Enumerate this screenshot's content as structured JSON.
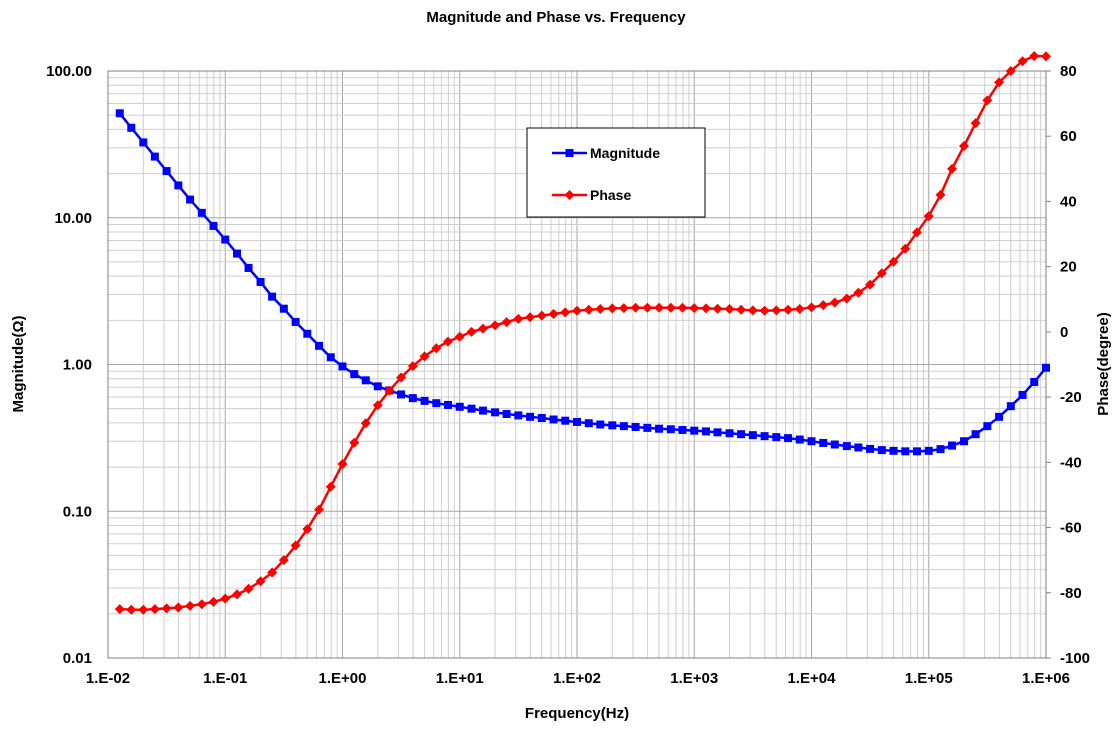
{
  "chart_data": {
    "type": "line",
    "title": "Magnitude and Phase vs. Frequency",
    "xlabel": "Frequency(Hz)",
    "ylabel_left": "Magnitude(Ω)",
    "ylabel_right": "Phase(degree)",
    "x_scale": "log",
    "y_left_scale": "log",
    "y_right_scale": "linear",
    "xlim": [
      0.01,
      1000000
    ],
    "ylim_left": [
      0.01,
      100
    ],
    "ylim_right": [
      -100,
      80
    ],
    "x_ticks": [
      "1.E-02",
      "1.E-01",
      "1.E+00",
      "1.E+01",
      "1.E+02",
      "1.E+03",
      "1.E+04",
      "1.E+05",
      "1.E+06"
    ],
    "y_left_ticks": [
      "0.01",
      "0.10",
      "1.00",
      "10.00",
      "100.00"
    ],
    "y_right_ticks": [
      "-100",
      "-80",
      "-60",
      "-40",
      "-20",
      "0",
      "20",
      "40",
      "60",
      "80"
    ],
    "grid": true,
    "legend_position": "top-right",
    "series": [
      {
        "name": "Magnitude",
        "axis": "left",
        "color": "#0000FF",
        "marker": "square",
        "x": [
          0.0126,
          0.0158,
          0.02,
          0.0251,
          0.0316,
          0.0398,
          0.0501,
          0.0631,
          0.0794,
          0.1,
          0.126,
          0.158,
          0.2,
          0.251,
          0.316,
          0.398,
          0.501,
          0.631,
          0.794,
          1,
          1.26,
          1.58,
          2,
          2.51,
          3.16,
          3.98,
          5.01,
          6.31,
          7.94,
          10,
          12.6,
          15.8,
          20,
          25.1,
          31.6,
          39.8,
          50.1,
          63.1,
          79.4,
          100,
          126,
          158,
          200,
          251,
          316,
          398,
          501,
          631,
          794,
          1000,
          1260,
          1580,
          2000,
          2510,
          3160,
          3980,
          5010,
          6310,
          7940,
          10000,
          12600,
          15800,
          20000,
          25100,
          31600,
          39800,
          50100,
          63100,
          79400,
          100000,
          126000,
          158000,
          200000,
          251000,
          316000,
          398000,
          501000,
          631000,
          794000,
          1000000
        ],
        "y": [
          51.5,
          41,
          32.6,
          26.1,
          20.8,
          16.6,
          13.3,
          10.8,
          8.8,
          7.1,
          5.7,
          4.55,
          3.65,
          2.9,
          2.4,
          1.95,
          1.62,
          1.34,
          1.12,
          0.97,
          0.86,
          0.78,
          0.71,
          0.665,
          0.625,
          0.59,
          0.565,
          0.545,
          0.53,
          0.515,
          0.5,
          0.485,
          0.472,
          0.46,
          0.45,
          0.44,
          0.432,
          0.422,
          0.414,
          0.406,
          0.398,
          0.39,
          0.385,
          0.38,
          0.375,
          0.37,
          0.365,
          0.362,
          0.358,
          0.354,
          0.35,
          0.345,
          0.34,
          0.335,
          0.33,
          0.325,
          0.32,
          0.315,
          0.308,
          0.3,
          0.292,
          0.285,
          0.278,
          0.272,
          0.266,
          0.261,
          0.258,
          0.256,
          0.256,
          0.258,
          0.265,
          0.28,
          0.3,
          0.335,
          0.38,
          0.44,
          0.52,
          0.62,
          0.76,
          0.95
        ]
      },
      {
        "name": "Phase",
        "axis": "right",
        "color": "#FF0000",
        "marker": "diamond",
        "x": [
          0.0126,
          0.0158,
          0.02,
          0.0251,
          0.0316,
          0.0398,
          0.0501,
          0.0631,
          0.0794,
          0.1,
          0.126,
          0.158,
          0.2,
          0.251,
          0.316,
          0.398,
          0.501,
          0.631,
          0.794,
          1,
          1.26,
          1.58,
          2,
          2.51,
          3.16,
          3.98,
          5.01,
          6.31,
          7.94,
          10,
          12.6,
          15.8,
          20,
          25.1,
          31.6,
          39.8,
          50.1,
          63.1,
          79.4,
          100,
          126,
          158,
          200,
          251,
          316,
          398,
          501,
          631,
          794,
          1000,
          1260,
          1580,
          2000,
          2510,
          3160,
          3980,
          5010,
          6310,
          7940,
          10000,
          12600,
          15800,
          20000,
          25100,
          31600,
          39800,
          50100,
          63100,
          79400,
          100000,
          126000,
          158000,
          200000,
          251000,
          316000,
          398000,
          501000,
          631000,
          794000,
          1000000
        ],
        "y": [
          -85,
          -85.2,
          -85.2,
          -85,
          -84.8,
          -84.5,
          -84,
          -83.5,
          -82.8,
          -81.8,
          -80.5,
          -78.8,
          -76.5,
          -73.8,
          -70,
          -65.5,
          -60.5,
          -54.5,
          -47.5,
          -40.5,
          -34,
          -28,
          -22.5,
          -18,
          -14,
          -10.5,
          -7.5,
          -5,
          -3,
          -1.5,
          0,
          1,
          2,
          3,
          4,
          4.5,
          5,
          5.5,
          6,
          6.5,
          6.8,
          7,
          7.2,
          7.3,
          7.4,
          7.4,
          7.4,
          7.4,
          7.4,
          7.3,
          7.2,
          7.1,
          7,
          6.8,
          6.6,
          6.5,
          6.6,
          6.8,
          7,
          7.5,
          8.2,
          9,
          10.2,
          12,
          14.5,
          18,
          21.5,
          25.5,
          30.5,
          35.5,
          42,
          50,
          57,
          64,
          71,
          76.5,
          80,
          83,
          84.6,
          84.5
        ]
      }
    ]
  }
}
